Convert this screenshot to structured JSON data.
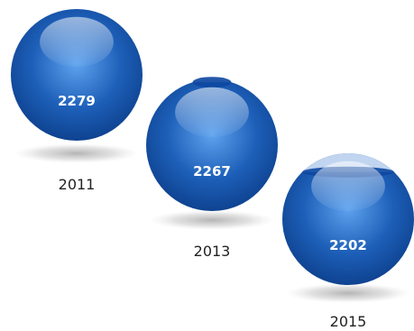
{
  "chart_data": {
    "type": "bubble",
    "categories": [
      "2011",
      "2013",
      "2015"
    ],
    "values": [
      2279,
      2267,
      2202
    ],
    "value_labels": [
      "2279",
      "2267",
      "2202"
    ],
    "title": "",
    "xlabel": "",
    "ylabel": "",
    "legend": "none",
    "grid": false,
    "colors": {
      "sphere": "#1d5fb8",
      "sphere_dark": "#0c3e8a",
      "sphere_light": "#5ea2ee",
      "shadow": "#bdbdbd",
      "value_text": "#ffffff",
      "year_text": "#222222"
    }
  }
}
